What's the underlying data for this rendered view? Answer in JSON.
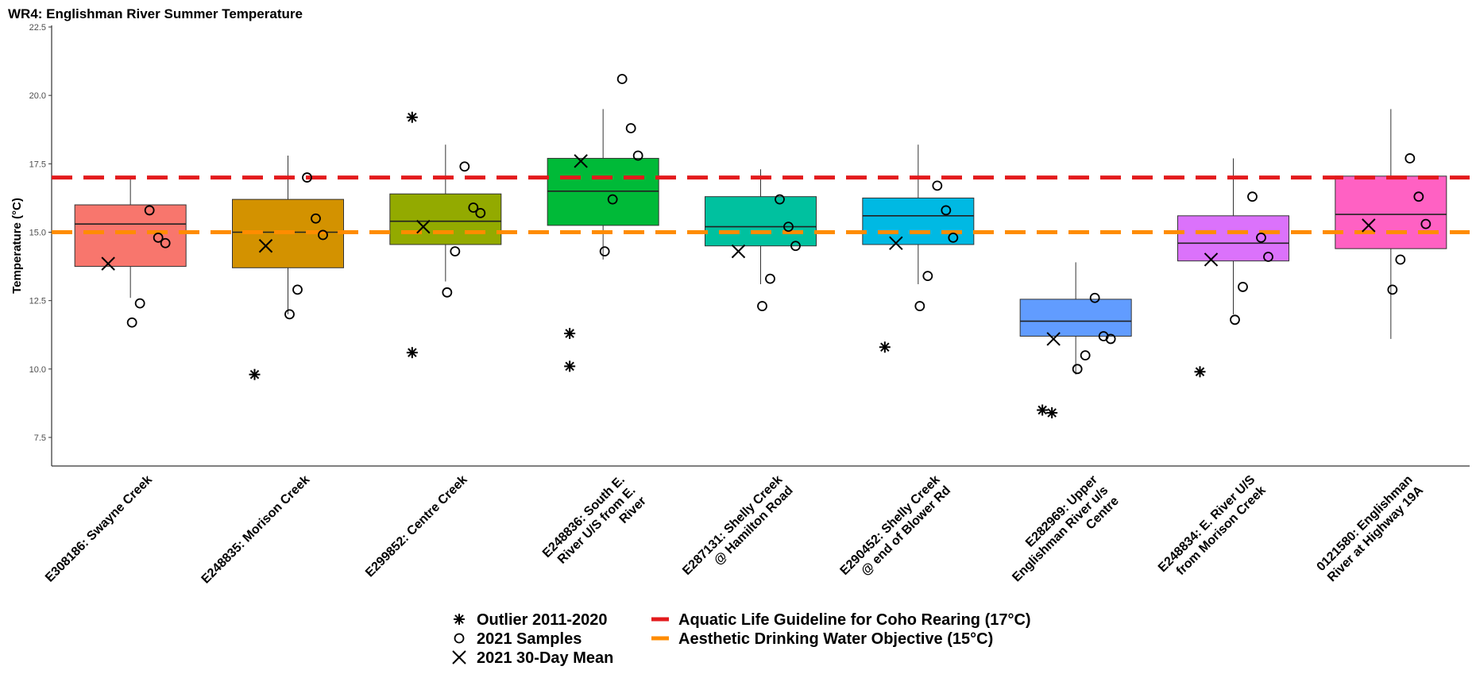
{
  "chart_data": {
    "type": "box",
    "title": "WR4: Englishman River Summer Temperature",
    "ylabel": "Temperature (°C)",
    "xlabel": "",
    "ylim": [
      6.5,
      22.5
    ],
    "yticks": [
      7.5,
      10.0,
      12.5,
      15.0,
      17.5,
      20.0,
      22.5
    ],
    "grid": false,
    "legend_position": "bottom",
    "categories": [
      "E308186: Swayne Creek",
      "E248835: Morison Creek",
      "E299852: Centre Creek",
      "E248836: South E. River U/S from E. River",
      "E287131: Shelly Creek @ Hamilton Road",
      "E290452: Shelly Creek @ end of Blower Rd",
      "E282969: Upper Englishman River u/s Centre",
      "E248834: E. River U/S from Morison Creek",
      "0121580: Englishman River at Highway 19A"
    ],
    "category_lines": [
      [
        "E308186: Swayne Creek"
      ],
      [
        "E248835: Morison Creek"
      ],
      [
        "E299852: Centre Creek"
      ],
      [
        "E248836: South E.",
        "River U/S from E.",
        "River"
      ],
      [
        "E287131: Shelly Creek",
        "@ Hamilton Road"
      ],
      [
        "E290452: Shelly Creek",
        "@ end of Blower Rd"
      ],
      [
        "E282969: Upper",
        "Englishman River u/s",
        "Centre"
      ],
      [
        "E248834: E. River U/S",
        "from Morison Creek"
      ],
      [
        "0121580: Englishman",
        "River at Highway 19A"
      ]
    ],
    "boxes": [
      {
        "color": "#f8766d",
        "whisker_low": 12.6,
        "q1": 13.75,
        "median": 15.3,
        "q3": 16.0,
        "whisker_high": 17.0,
        "outliers": [],
        "mean_2021": 13.85,
        "samples_2021": [
          15.8,
          14.8,
          14.6,
          12.4,
          11.7
        ]
      },
      {
        "color": "#d39200",
        "whisker_low": 12.0,
        "q1": 13.7,
        "median": 15.0,
        "q3": 16.2,
        "whisker_high": 17.8,
        "outliers": [
          9.8
        ],
        "mean_2021": 14.5,
        "samples_2021": [
          17.0,
          15.5,
          14.9,
          12.9,
          12.0
        ]
      },
      {
        "color": "#93aa00",
        "whisker_low": 13.2,
        "q1": 14.55,
        "median": 15.4,
        "q3": 16.4,
        "whisker_high": 18.2,
        "outliers": [
          19.2,
          10.6
        ],
        "mean_2021": 15.2,
        "samples_2021": [
          17.4,
          15.9,
          15.7,
          14.3,
          12.8
        ]
      },
      {
        "color": "#00ba38",
        "whisker_low": 14.0,
        "q1": 15.25,
        "median": 16.5,
        "q3": 17.7,
        "whisker_high": 19.5,
        "outliers": [
          11.3,
          10.1
        ],
        "mean_2021": 17.6,
        "samples_2021": [
          20.6,
          18.8,
          17.8,
          16.2,
          14.3
        ]
      },
      {
        "color": "#00c19f",
        "whisker_low": 13.1,
        "q1": 14.5,
        "median": 15.2,
        "q3": 16.3,
        "whisker_high": 17.3,
        "outliers": [],
        "mean_2021": 14.3,
        "samples_2021": [
          16.2,
          15.2,
          14.5,
          13.3,
          12.3
        ]
      },
      {
        "color": "#00b9e3",
        "whisker_low": 13.1,
        "q1": 14.55,
        "median": 15.6,
        "q3": 16.25,
        "whisker_high": 18.2,
        "outliers": [
          10.8
        ],
        "mean_2021": 14.6,
        "samples_2021": [
          16.7,
          15.8,
          14.8,
          13.4,
          12.3
        ]
      },
      {
        "color": "#619cff",
        "whisker_low": 9.8,
        "q1": 11.2,
        "median": 11.75,
        "q3": 12.55,
        "whisker_high": 13.9,
        "outliers": [
          8.5,
          8.4
        ],
        "mean_2021": 11.1,
        "samples_2021": [
          12.6,
          11.2,
          11.1,
          10.5,
          10.0
        ]
      },
      {
        "color": "#db72fb",
        "whisker_low": 12.0,
        "q1": 13.95,
        "median": 14.6,
        "q3": 15.6,
        "whisker_high": 17.7,
        "outliers": [
          9.9
        ],
        "mean_2021": 14.0,
        "samples_2021": [
          16.3,
          14.8,
          14.1,
          13.0,
          11.8
        ]
      },
      {
        "color": "#ff61c3",
        "whisker_low": 11.1,
        "q1": 14.4,
        "median": 15.65,
        "q3": 17.05,
        "whisker_high": 19.5,
        "outliers": [],
        "mean_2021": 15.25,
        "samples_2021": [
          17.7,
          16.3,
          15.3,
          14.0,
          12.9
        ]
      }
    ],
    "reference_lines": [
      {
        "name": "Aquatic Life Guideline for Coho Rearing (17°C)",
        "value": 17,
        "color": "#e31a1c",
        "style": "dashed"
      },
      {
        "name": "Aesthetic Drinking Water Objective (15°C)",
        "value": 15,
        "color": "#ff8c00",
        "style": "dashed"
      }
    ],
    "legend": {
      "symbols": [
        {
          "symbol": "asterisk",
          "label": "Outlier 2011-2020"
        },
        {
          "symbol": "circle",
          "label": "2021 Samples"
        },
        {
          "symbol": "cross",
          "label": "2021 30-Day Mean"
        }
      ]
    }
  }
}
